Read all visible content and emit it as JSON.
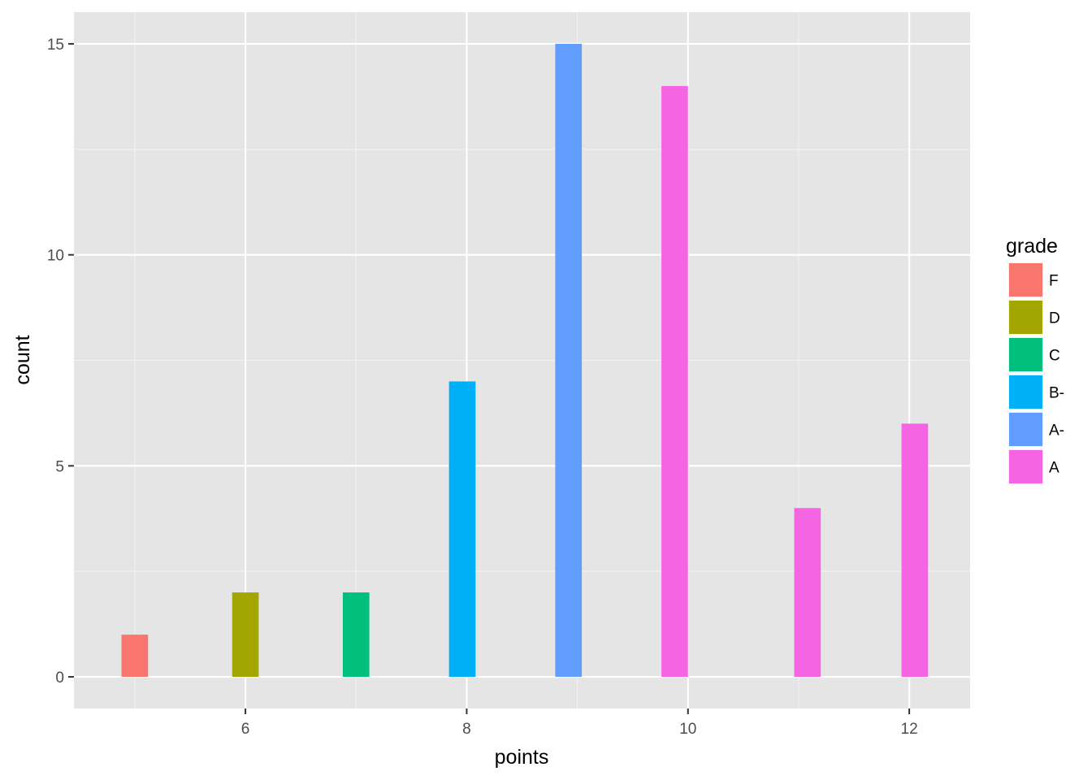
{
  "chart_data": {
    "type": "bar",
    "xlabel": "points",
    "ylabel": "count",
    "xlim": [
      4.45,
      12.55
    ],
    "ylim": [
      -0.75,
      15.75
    ],
    "x_ticks": [
      6,
      8,
      10,
      12
    ],
    "y_ticks": [
      0,
      5,
      10,
      15
    ],
    "grid": true,
    "background": "#e5e5e5",
    "bar_width": 0.24,
    "bars": [
      {
        "x": 5.0,
        "value": 1,
        "grade": "F"
      },
      {
        "x": 6.0,
        "value": 2,
        "grade": "D"
      },
      {
        "x": 7.0,
        "value": 2,
        "grade": "C"
      },
      {
        "x": 7.96,
        "value": 7,
        "grade": "B-"
      },
      {
        "x": 8.92,
        "value": 15,
        "grade": "A-"
      },
      {
        "x": 9.88,
        "value": 14,
        "grade": "A"
      },
      {
        "x": 11.08,
        "value": 4,
        "grade": "A"
      },
      {
        "x": 12.05,
        "value": 6,
        "grade": "A"
      }
    ],
    "legend": {
      "title": "grade",
      "position": "right",
      "items": [
        {
          "label": "F",
          "color": "#f8766d"
        },
        {
          "label": "D",
          "color": "#a3a500"
        },
        {
          "label": "C",
          "color": "#00bf7d"
        },
        {
          "label": "B-",
          "color": "#00b0f6"
        },
        {
          "label": "A-",
          "color": "#619cff"
        },
        {
          "label": "A",
          "color": "#f564e3"
        }
      ]
    }
  }
}
